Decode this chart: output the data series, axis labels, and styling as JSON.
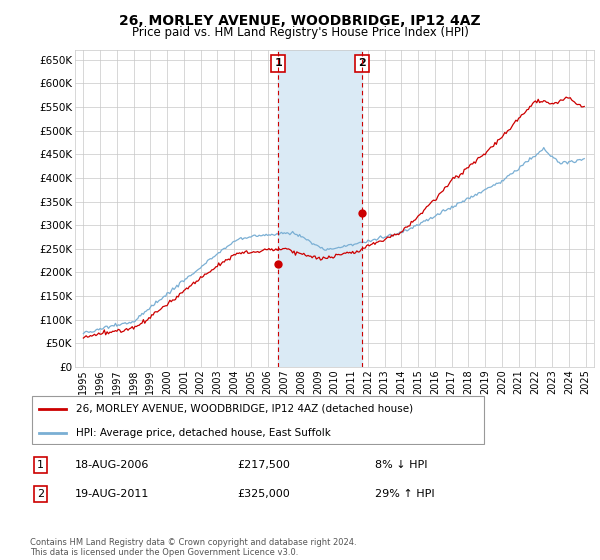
{
  "title": "26, MORLEY AVENUE, WOODBRIDGE, IP12 4AZ",
  "subtitle": "Price paid vs. HM Land Registry's House Price Index (HPI)",
  "ylabel_ticks": [
    "£0",
    "£50K",
    "£100K",
    "£150K",
    "£200K",
    "£250K",
    "£300K",
    "£350K",
    "£400K",
    "£450K",
    "£500K",
    "£550K",
    "£600K",
    "£650K"
  ],
  "ytick_values": [
    0,
    50000,
    100000,
    150000,
    200000,
    250000,
    300000,
    350000,
    400000,
    450000,
    500000,
    550000,
    600000,
    650000
  ],
  "ylim": [
    0,
    670000
  ],
  "xlim_start": 1994.5,
  "xlim_end": 2025.5,
  "sale1_year": 2006.63,
  "sale1_price": 217500,
  "sale2_year": 2011.63,
  "sale2_price": 325000,
  "sale1_label": "1",
  "sale2_label": "2",
  "legend_line1": "26, MORLEY AVENUE, WOODBRIDGE, IP12 4AZ (detached house)",
  "legend_line2": "HPI: Average price, detached house, East Suffolk",
  "table_row1_num": "1",
  "table_row1_date": "18-AUG-2006",
  "table_row1_price": "£217,500",
  "table_row1_hpi": "8% ↓ HPI",
  "table_row2_num": "2",
  "table_row2_date": "19-AUG-2011",
  "table_row2_price": "£325,000",
  "table_row2_hpi": "29% ↑ HPI",
  "footer": "Contains HM Land Registry data © Crown copyright and database right 2024.\nThis data is licensed under the Open Government Licence v3.0.",
  "red_color": "#cc0000",
  "blue_color": "#7aafd4",
  "shading_color": "#daeaf5",
  "grid_color": "#c8c8c8",
  "bg_color": "#ffffff"
}
